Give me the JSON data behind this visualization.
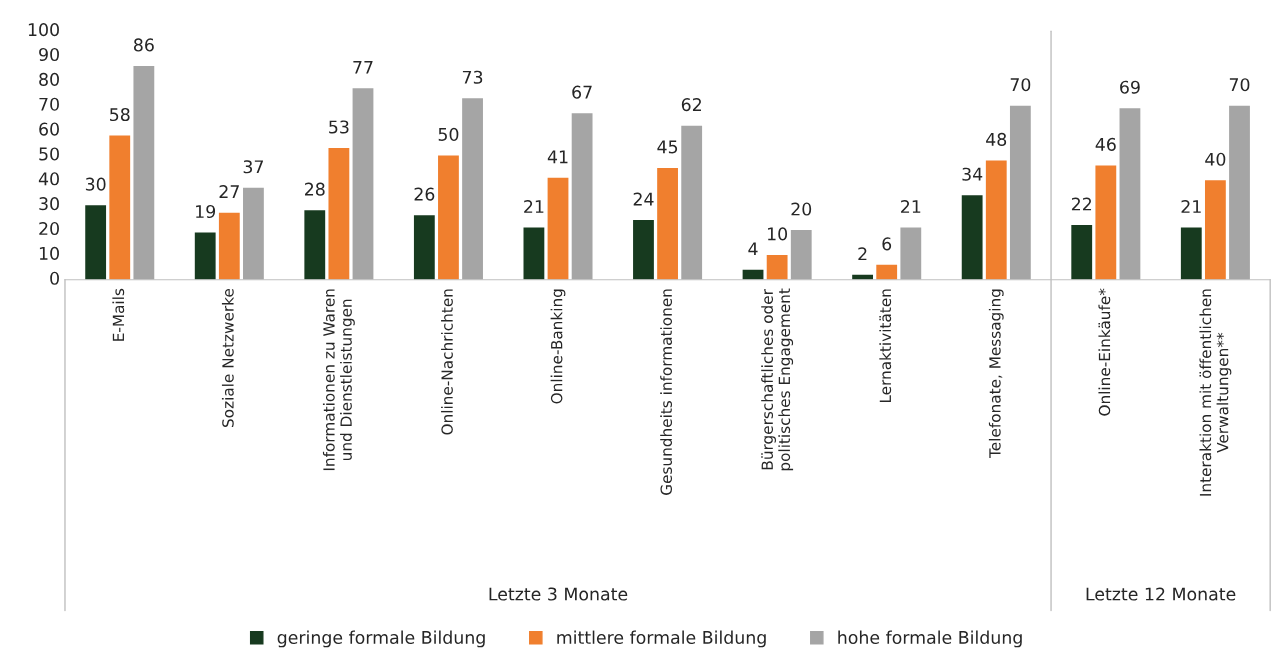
{
  "chart_data": {
    "type": "bar",
    "categories": [
      "E-Mails",
      "Soziale Netzwerke",
      "Informationen zu Waren\nund Dienstleistungen",
      "Online-Nachrichten",
      "Online-Banking",
      "Gesundheits informationen",
      "Bürgerschaftliches oder\npolitisches Engagement",
      "Lernaktivitäten",
      "Telefonate, Messaging",
      "Online-Einkäufe*",
      "Interaktion mit öffentlichen\nVerwaltungen**"
    ],
    "series": [
      {
        "name": "geringe formale Bildung",
        "color": "#173a1f",
        "values": [
          30,
          19,
          28,
          26,
          21,
          24,
          4,
          2,
          34,
          22,
          21
        ]
      },
      {
        "name": "mittlere formale Bildung",
        "color": "#f07f2e",
        "values": [
          58,
          27,
          53,
          50,
          41,
          45,
          10,
          6,
          48,
          46,
          40
        ]
      },
      {
        "name": "hohe formale Bildung",
        "color": "#a5a5a5",
        "values": [
          86,
          37,
          77,
          73,
          67,
          62,
          20,
          21,
          70,
          69,
          70
        ]
      }
    ],
    "annotations": [
      "Letzte 3 Monate",
      "Letzte 12 Monate"
    ],
    "ylim": [
      0,
      100
    ],
    "yticks": [
      0,
      10,
      20,
      30,
      40,
      50,
      60,
      70,
      80,
      90,
      100
    ],
    "data_labels": true,
    "grid": false,
    "legend": "bottom"
  }
}
